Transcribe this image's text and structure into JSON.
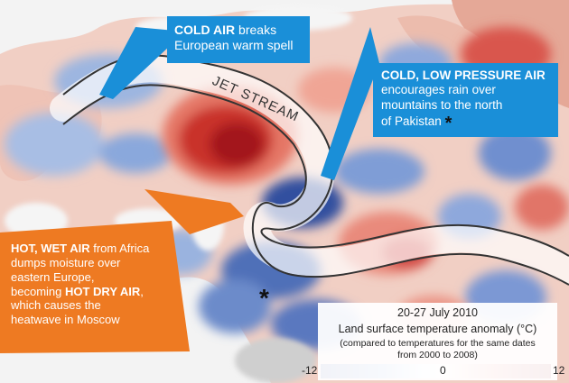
{
  "callouts": {
    "cold_air": {
      "bold": "COLD AIR",
      "rest1": " breaks",
      "rest2": "European warm spell"
    },
    "cold_low": {
      "bold": "COLD, LOW PRESSURE AIR",
      "line2": "encourages rain over",
      "line3": "mountains to the north",
      "line4": "of Pakistan",
      "marker": "*"
    },
    "hot_wet": {
      "bold1": "HOT, WET AIR",
      "rest1": " from Africa",
      "line2": "dumps moisture over",
      "line3": "eastern Europe,",
      "line4a": "becoming ",
      "bold2": "HOT DRY AIR",
      "line4b": ",",
      "line5": "which causes the",
      "line6": "heatwave in Moscow"
    }
  },
  "jet_stream_label": "JET STREAM",
  "pakistan_marker": "*",
  "legend": {
    "date_range": "20-27 July 2010",
    "title": "Land surface temperature anomaly (°C)",
    "note_line1": "(compared to temperatures for the same dates",
    "note_line2": "from 2000 to 2008)",
    "ticks": [
      "-12",
      "0",
      "12"
    ],
    "scale_min": -12,
    "scale_max": 12
  },
  "colors": {
    "callout_blue": "#1a8fd8",
    "callout_orange": "#ee7a22",
    "warm_dark": "#b8141c",
    "warm_light": "#f7b3a3",
    "cool_dark": "#1f3f9a",
    "cool_light": "#a9bfe3",
    "water": "#f4f4f4"
  }
}
